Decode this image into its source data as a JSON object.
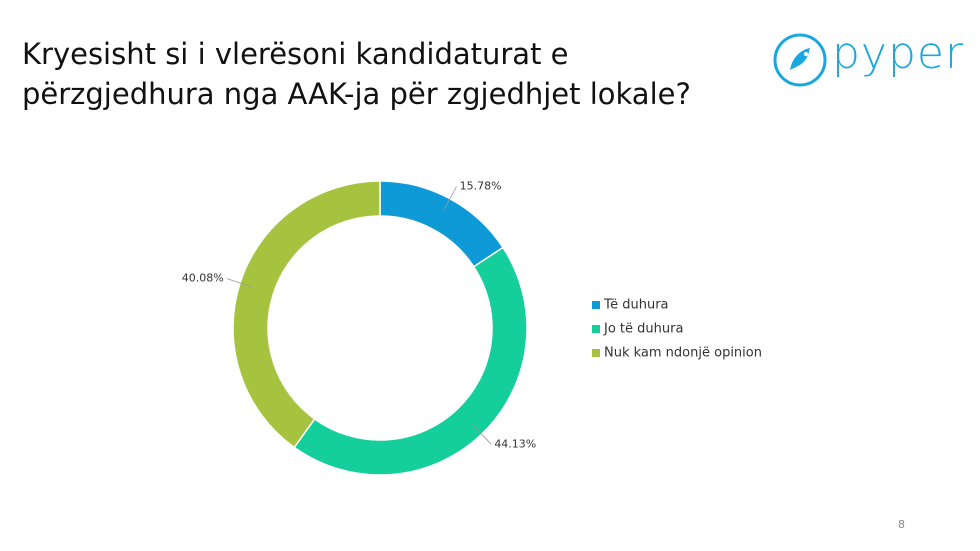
{
  "title_lines": [
    "Kryesisht si i vlerësoni kandidaturat e",
    "përzgjedhura nga AAK-ja për zgjedhjet lokale?"
  ],
  "logo": "pyper",
  "page_number": "8",
  "chart_data": {
    "type": "donut",
    "categories": [
      "Të duhura",
      "Jo të duhura",
      "Nuk kam ndonjë opinion"
    ],
    "values": [
      15.78,
      44.13,
      40.08
    ],
    "value_labels": [
      "15.78%",
      "44.13%",
      "40.08%"
    ],
    "colors": [
      "#0e9ad6",
      "#14cf9c",
      "#a5c33f"
    ],
    "legend": "right"
  }
}
